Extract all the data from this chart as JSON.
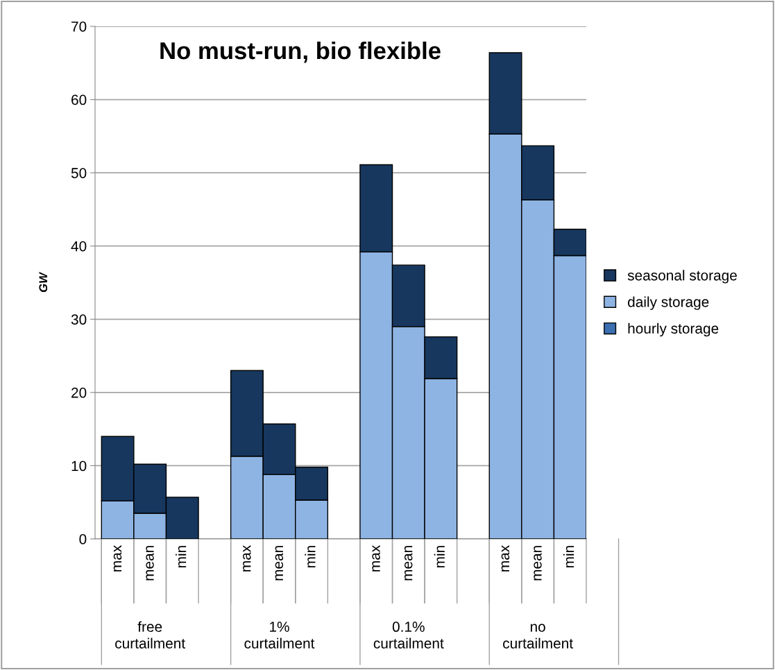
{
  "chart_data": {
    "type": "bar",
    "title": "No must-run, bio flexible",
    "ylabel": "GW",
    "stacked": true,
    "categories": [
      "max",
      "mean",
      "min",
      "max",
      "mean",
      "min",
      "max",
      "mean",
      "min",
      "max",
      "mean",
      "min"
    ],
    "annotations": [
      "free\ncurtailment",
      "1%\ncurtailment",
      "0.1%\ncurtailment",
      "no\ncurtailment"
    ],
    "series": [
      {
        "name": "hourly storage",
        "color": "#3b6fb0",
        "values": [
          0,
          0,
          0,
          0,
          0,
          0,
          0,
          0,
          0,
          0,
          0,
          0
        ]
      },
      {
        "name": "daily storage",
        "color": "#8eb4e3",
        "values": [
          5.2,
          3.5,
          0,
          11.3,
          8.8,
          5.3,
          39.2,
          29.0,
          21.9,
          55.3,
          46.3,
          38.7
        ]
      },
      {
        "name": "seasonal storage",
        "color": "#17375e",
        "values": [
          8.8,
          6.7,
          5.7,
          11.7,
          6.9,
          4.5,
          11.9,
          8.4,
          5.7,
          11.1,
          7.4,
          3.6
        ]
      }
    ],
    "ylim": [
      0,
      70
    ],
    "yticks": [
      0,
      10,
      20,
      30,
      40,
      50,
      60,
      70
    ],
    "grid": "y",
    "legend": "right"
  }
}
